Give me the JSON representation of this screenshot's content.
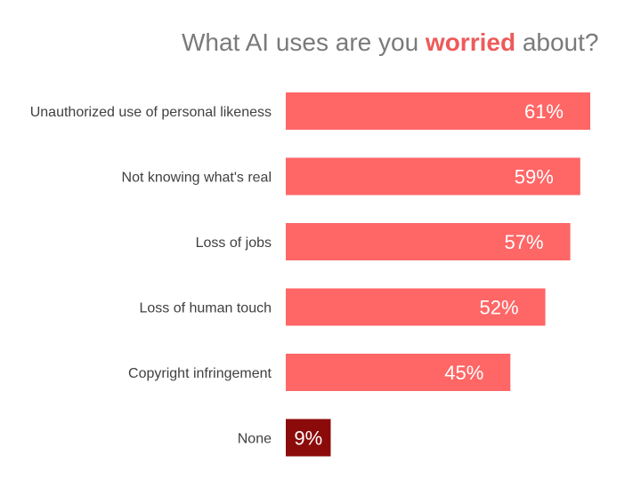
{
  "title": {
    "prefix": "What AI uses are you ",
    "emphasis": "worried",
    "suffix": " about?",
    "emphasis_color": "#ee5a5a"
  },
  "colors": {
    "bar": "#ff6666",
    "highlight_bar": "#8b0b0b",
    "label_text": "#404040",
    "value_text": "#ffffff",
    "title_text": "#7a7a7a"
  },
  "chart_data": {
    "type": "bar",
    "orientation": "horizontal",
    "title": "What AI uses are you worried about?",
    "categories": [
      "Unauthorized use of personal likeness",
      "Not knowing what's real",
      "Loss of jobs",
      "Loss of human touch",
      "Copyright infringement",
      "None"
    ],
    "values": [
      61,
      59,
      57,
      52,
      45,
      9
    ],
    "value_labels": [
      "61%",
      "59%",
      "57%",
      "52%",
      "45%",
      "9%"
    ],
    "highlight_index": 5,
    "unit": "%",
    "xlim": [
      0,
      61
    ],
    "grid": false,
    "legend": "none"
  }
}
